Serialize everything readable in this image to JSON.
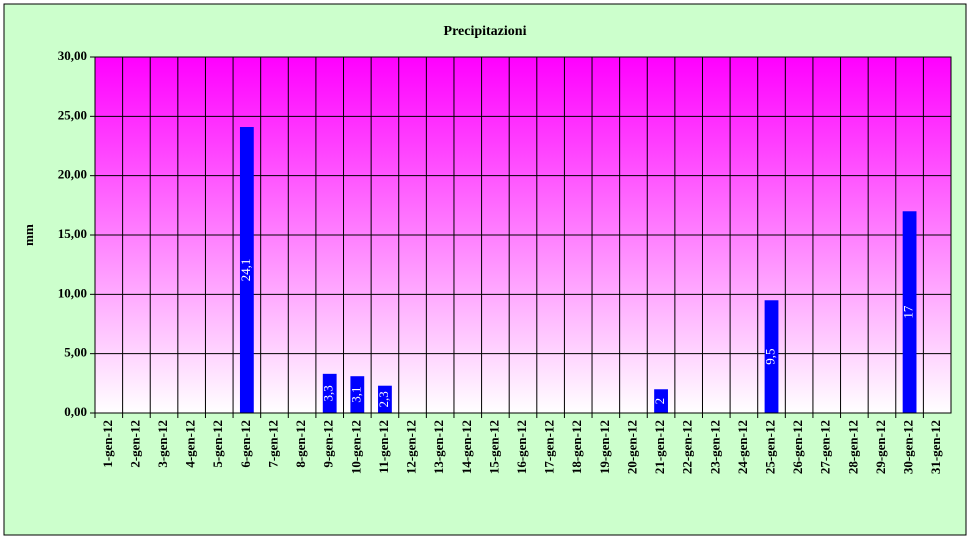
{
  "chart_data": {
    "type": "bar",
    "title": "Precipitazioni",
    "y_label": "mm",
    "categories": [
      "1-gen-12",
      "2-gen-12",
      "3-gen-12",
      "4-gen-12",
      "5-gen-12",
      "6-gen-12",
      "7-gen-12",
      "8-gen-12",
      "9-gen-12",
      "10-gen-12",
      "11-gen-12",
      "12-gen-12",
      "13-gen-12",
      "14-gen-12",
      "15-gen-12",
      "16-gen-12",
      "17-gen-12",
      "18-gen-12",
      "19-gen-12",
      "20-gen-12",
      "21-gen-12",
      "22-gen-12",
      "23-gen-12",
      "24-gen-12",
      "25-gen-12",
      "26-gen-12",
      "27-gen-12",
      "28-gen-12",
      "29-gen-12",
      "30-gen-12",
      "31-gen-12"
    ],
    "values": [
      null,
      null,
      null,
      null,
      null,
      24.1,
      null,
      null,
      3.3,
      3.1,
      2.3,
      null,
      null,
      null,
      null,
      null,
      null,
      null,
      null,
      null,
      2,
      null,
      null,
      null,
      9.5,
      null,
      null,
      null,
      null,
      17,
      null
    ],
    "value_labels": [
      null,
      null,
      null,
      null,
      null,
      "24,1",
      null,
      null,
      "3,3",
      "3,1",
      "2,3",
      null,
      null,
      null,
      null,
      null,
      null,
      null,
      null,
      null,
      "2",
      null,
      null,
      null,
      "9,5",
      null,
      null,
      null,
      null,
      "17",
      null
    ],
    "color": "#0000ff",
    "ylim": [
      0,
      30
    ],
    "yticks": [
      {
        "value": 0,
        "label": "0,00"
      },
      {
        "value": 5,
        "label": "5,00"
      },
      {
        "value": 10,
        "label": "10,00"
      },
      {
        "value": 15,
        "label": "15,00"
      },
      {
        "value": 20,
        "label": "20,00"
      },
      {
        "value": 25,
        "label": "25,00"
      },
      {
        "value": 30,
        "label": "30,00"
      }
    ],
    "grid": true
  }
}
